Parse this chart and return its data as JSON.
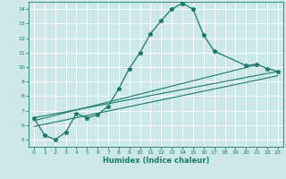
{
  "xlabel": "Humidex (Indice chaleur)",
  "bg_color": "#cce8e8",
  "line_color": "#1a7a6e",
  "grid_color": "#ffffff",
  "xlim": [
    -0.5,
    23.5
  ],
  "ylim": [
    4.5,
    14.5
  ],
  "xticks": [
    0,
    1,
    2,
    3,
    4,
    5,
    6,
    7,
    8,
    9,
    10,
    11,
    12,
    13,
    14,
    15,
    16,
    17,
    18,
    19,
    20,
    21,
    22,
    23
  ],
  "yticks": [
    5,
    6,
    7,
    8,
    9,
    10,
    11,
    12,
    13,
    14
  ],
  "main_series": {
    "x": [
      0,
      1,
      2,
      3,
      4,
      5,
      6,
      7,
      8,
      9,
      10,
      11,
      12,
      13,
      14,
      15,
      16,
      17,
      20,
      21,
      22,
      23
    ],
    "y": [
      6.5,
      5.3,
      5.0,
      5.5,
      6.8,
      6.5,
      6.7,
      7.3,
      8.5,
      9.9,
      11.0,
      12.3,
      13.2,
      14.0,
      14.4,
      14.0,
      12.2,
      11.1,
      10.1,
      10.2,
      9.9,
      9.7
    ]
  },
  "straight_lines": [
    {
      "x": [
        0,
        23
      ],
      "y": [
        6.5,
        9.7
      ]
    },
    {
      "x": [
        0,
        21
      ],
      "y": [
        6.3,
        10.15
      ]
    },
    {
      "x": [
        0,
        23
      ],
      "y": [
        5.9,
        9.4
      ]
    }
  ]
}
